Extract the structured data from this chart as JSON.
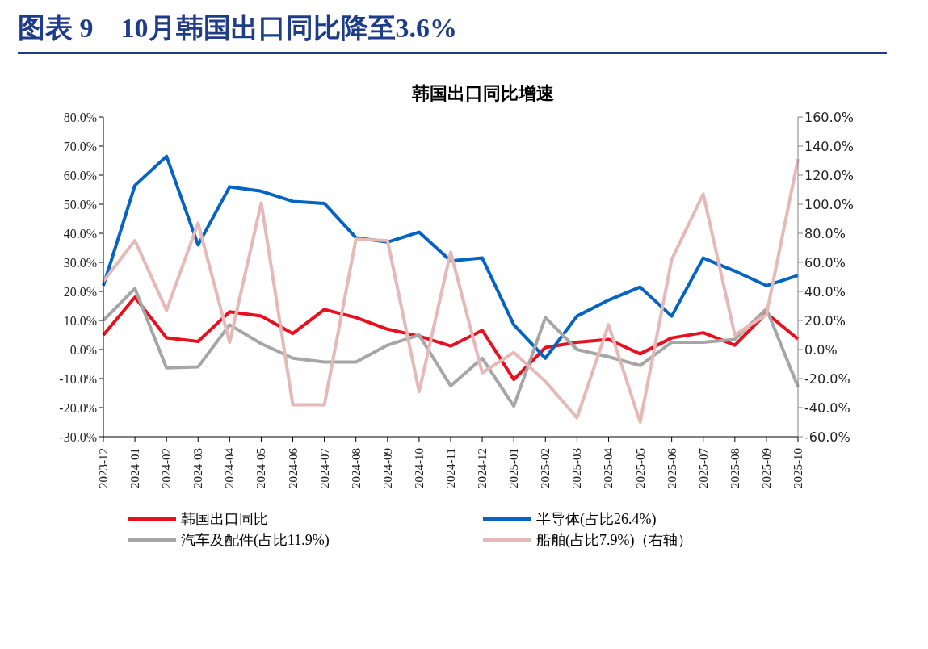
{
  "chart_data": {
    "type": "line",
    "title": "图表 9　10月韩国出口同比降至3.6%",
    "subtitle": "韩国出口同比增速",
    "categories": [
      "2023-12",
      "2024-01",
      "2024-02",
      "2024-03",
      "2024-04",
      "2024-05",
      "2024-06",
      "2024-07",
      "2024-08",
      "2024-09",
      "2024-10",
      "2024-11",
      "2024-12",
      "2025-01",
      "2025-02",
      "2025-03",
      "2025-04",
      "2025-05",
      "2025-06",
      "2025-07",
      "2025-08",
      "2025-09",
      "2025-10"
    ],
    "series": [
      {
        "name": "韩国出口同比",
        "color": "#e8101f",
        "values": [
          5,
          18,
          4,
          2.8,
          13,
          11.5,
          5.5,
          13.8,
          11,
          7,
          4.6,
          1.2,
          6.6,
          -10.3,
          0.7,
          2.5,
          3.5,
          -1.5,
          4,
          5.8,
          1.5,
          12.5,
          3.6
        ]
      },
      {
        "name": "半导体(占比26.4%)",
        "color": "#0563c1",
        "values": [
          22,
          56.5,
          66.5,
          36,
          56,
          54.5,
          51,
          50.3,
          38.5,
          37,
          40.4,
          30.5,
          31.5,
          8.5,
          -3,
          11.5,
          17,
          21.5,
          11.5,
          31.5,
          27,
          22,
          25.5
        ]
      },
      {
        "name": "汽车及配件(占比11.9%)",
        "color": "#a6a6a6",
        "values": [
          10,
          21,
          -6.3,
          -6,
          8.5,
          2,
          -3,
          -4.3,
          -4.3,
          1.5,
          5,
          -12.5,
          -3,
          -19.5,
          11,
          0,
          -2.5,
          -5.5,
          2.5,
          2.5,
          3.5,
          14,
          -12.8
        ]
      },
      {
        "name": "船舶(占比7.9%)（右轴）",
        "color": "#e6b9b8",
        "axis": "y2",
        "values": [
          47,
          75,
          27,
          87,
          5,
          101,
          -38,
          -38,
          76,
          75,
          -29,
          67,
          -16,
          -2,
          -22,
          -47,
          17,
          -50,
          62,
          107,
          10,
          24,
          131
        ]
      }
    ],
    "ylim": [
      -30,
      80
    ],
    "yticks": [
      {
        "value": -30,
        "label": "-30.0%"
      },
      {
        "value": -20,
        "label": "-20.0%"
      },
      {
        "value": -10,
        "label": "-10.0%"
      },
      {
        "value": 0,
        "label": "0.0%"
      },
      {
        "value": 10,
        "label": "10.0%"
      },
      {
        "value": 20,
        "label": "20.0%"
      },
      {
        "value": 30,
        "label": "30.0%"
      },
      {
        "value": 40,
        "label": "40.0%"
      },
      {
        "value": 50,
        "label": "50.0%"
      },
      {
        "value": 60,
        "label": "60.0%"
      },
      {
        "value": 70,
        "label": "70.0%"
      },
      {
        "value": 80,
        "label": "80.0%"
      }
    ],
    "y2lim": [
      -60,
      160
    ],
    "y2ticks": [
      {
        "value": -60,
        "label": "-60.0%"
      },
      {
        "value": -40,
        "label": "-40.0%"
      },
      {
        "value": -20,
        "label": "-20.0%"
      },
      {
        "value": 0,
        "label": "0.0%"
      },
      {
        "value": 20,
        "label": "20.0%"
      },
      {
        "value": 40,
        "label": "40.0%"
      },
      {
        "value": 60,
        "label": "60.0%"
      },
      {
        "value": 80,
        "label": "80.0%"
      },
      {
        "value": 100,
        "label": "100.0%"
      },
      {
        "value": 120,
        "label": "120.0%"
      },
      {
        "value": 140,
        "label": "140.0%"
      },
      {
        "value": 160,
        "label": "160.0%"
      }
    ],
    "legend": "bottom",
    "marker": "none",
    "line_style": "solid"
  }
}
